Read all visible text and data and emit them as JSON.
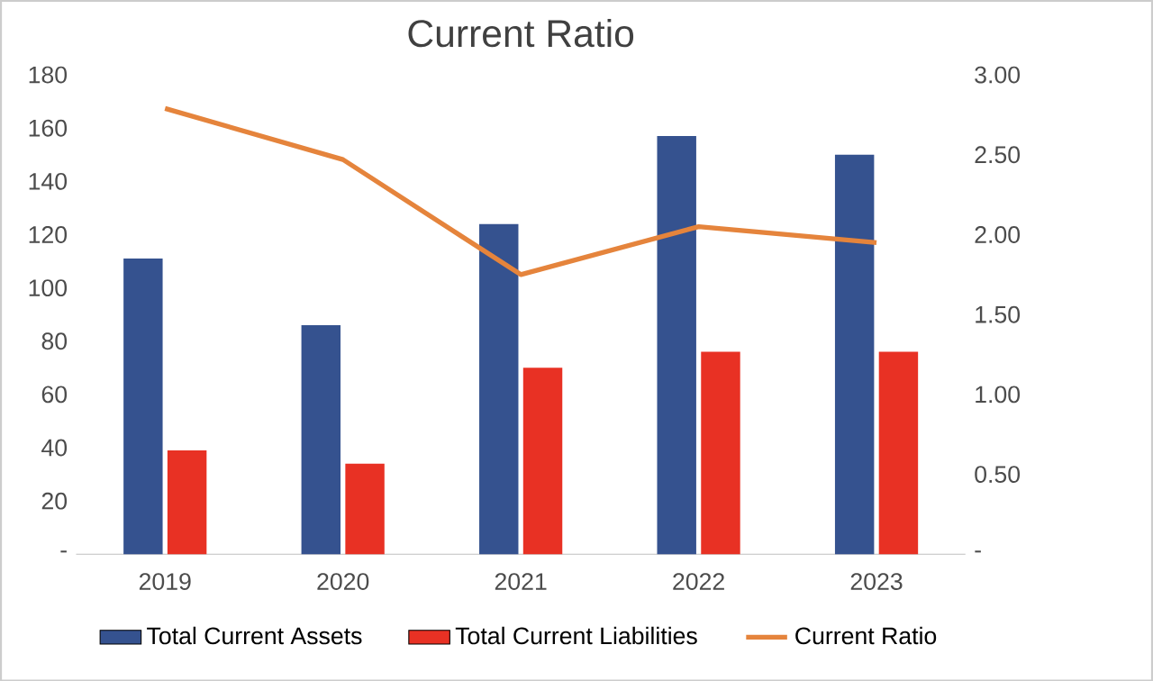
{
  "chart_data": {
    "type": "bar",
    "title": "Current Ratio",
    "categories": [
      "2019",
      "2020",
      "2021",
      "2022",
      "2023"
    ],
    "series": [
      {
        "name": "Total Current Assets",
        "color": "#35528f",
        "values": [
          111,
          86,
          124,
          157,
          150
        ]
      },
      {
        "name": "Total Current Liabilities",
        "color": "#e83124",
        "values": [
          39,
          34,
          70,
          76,
          76
        ]
      },
      {
        "name": "Current Ratio",
        "type": "line",
        "axis": "y2",
        "color": "#e5843c",
        "values": [
          2.79,
          2.47,
          1.75,
          2.05,
          1.95
        ]
      }
    ],
    "ylim": [
      0,
      180
    ],
    "yticks": [
      {
        "value": 0,
        "label": "-"
      },
      20,
      40,
      60,
      80,
      100,
      120,
      140,
      160,
      180
    ],
    "y2lim": [
      0,
      3
    ],
    "y2ticks": [
      {
        "value": 0,
        "label": "-"
      },
      {
        "value": 0.5,
        "label": "0.50"
      },
      {
        "value": 1,
        "label": "1.00"
      },
      {
        "value": 1.5,
        "label": "1.50"
      },
      {
        "value": 2,
        "label": "2.00"
      },
      {
        "value": 2.5,
        "label": "2.50"
      },
      {
        "value": 3,
        "label": "3.00"
      }
    ],
    "legend": "bottom",
    "grid": false,
    "marker": "none",
    "line_style": "solid"
  }
}
